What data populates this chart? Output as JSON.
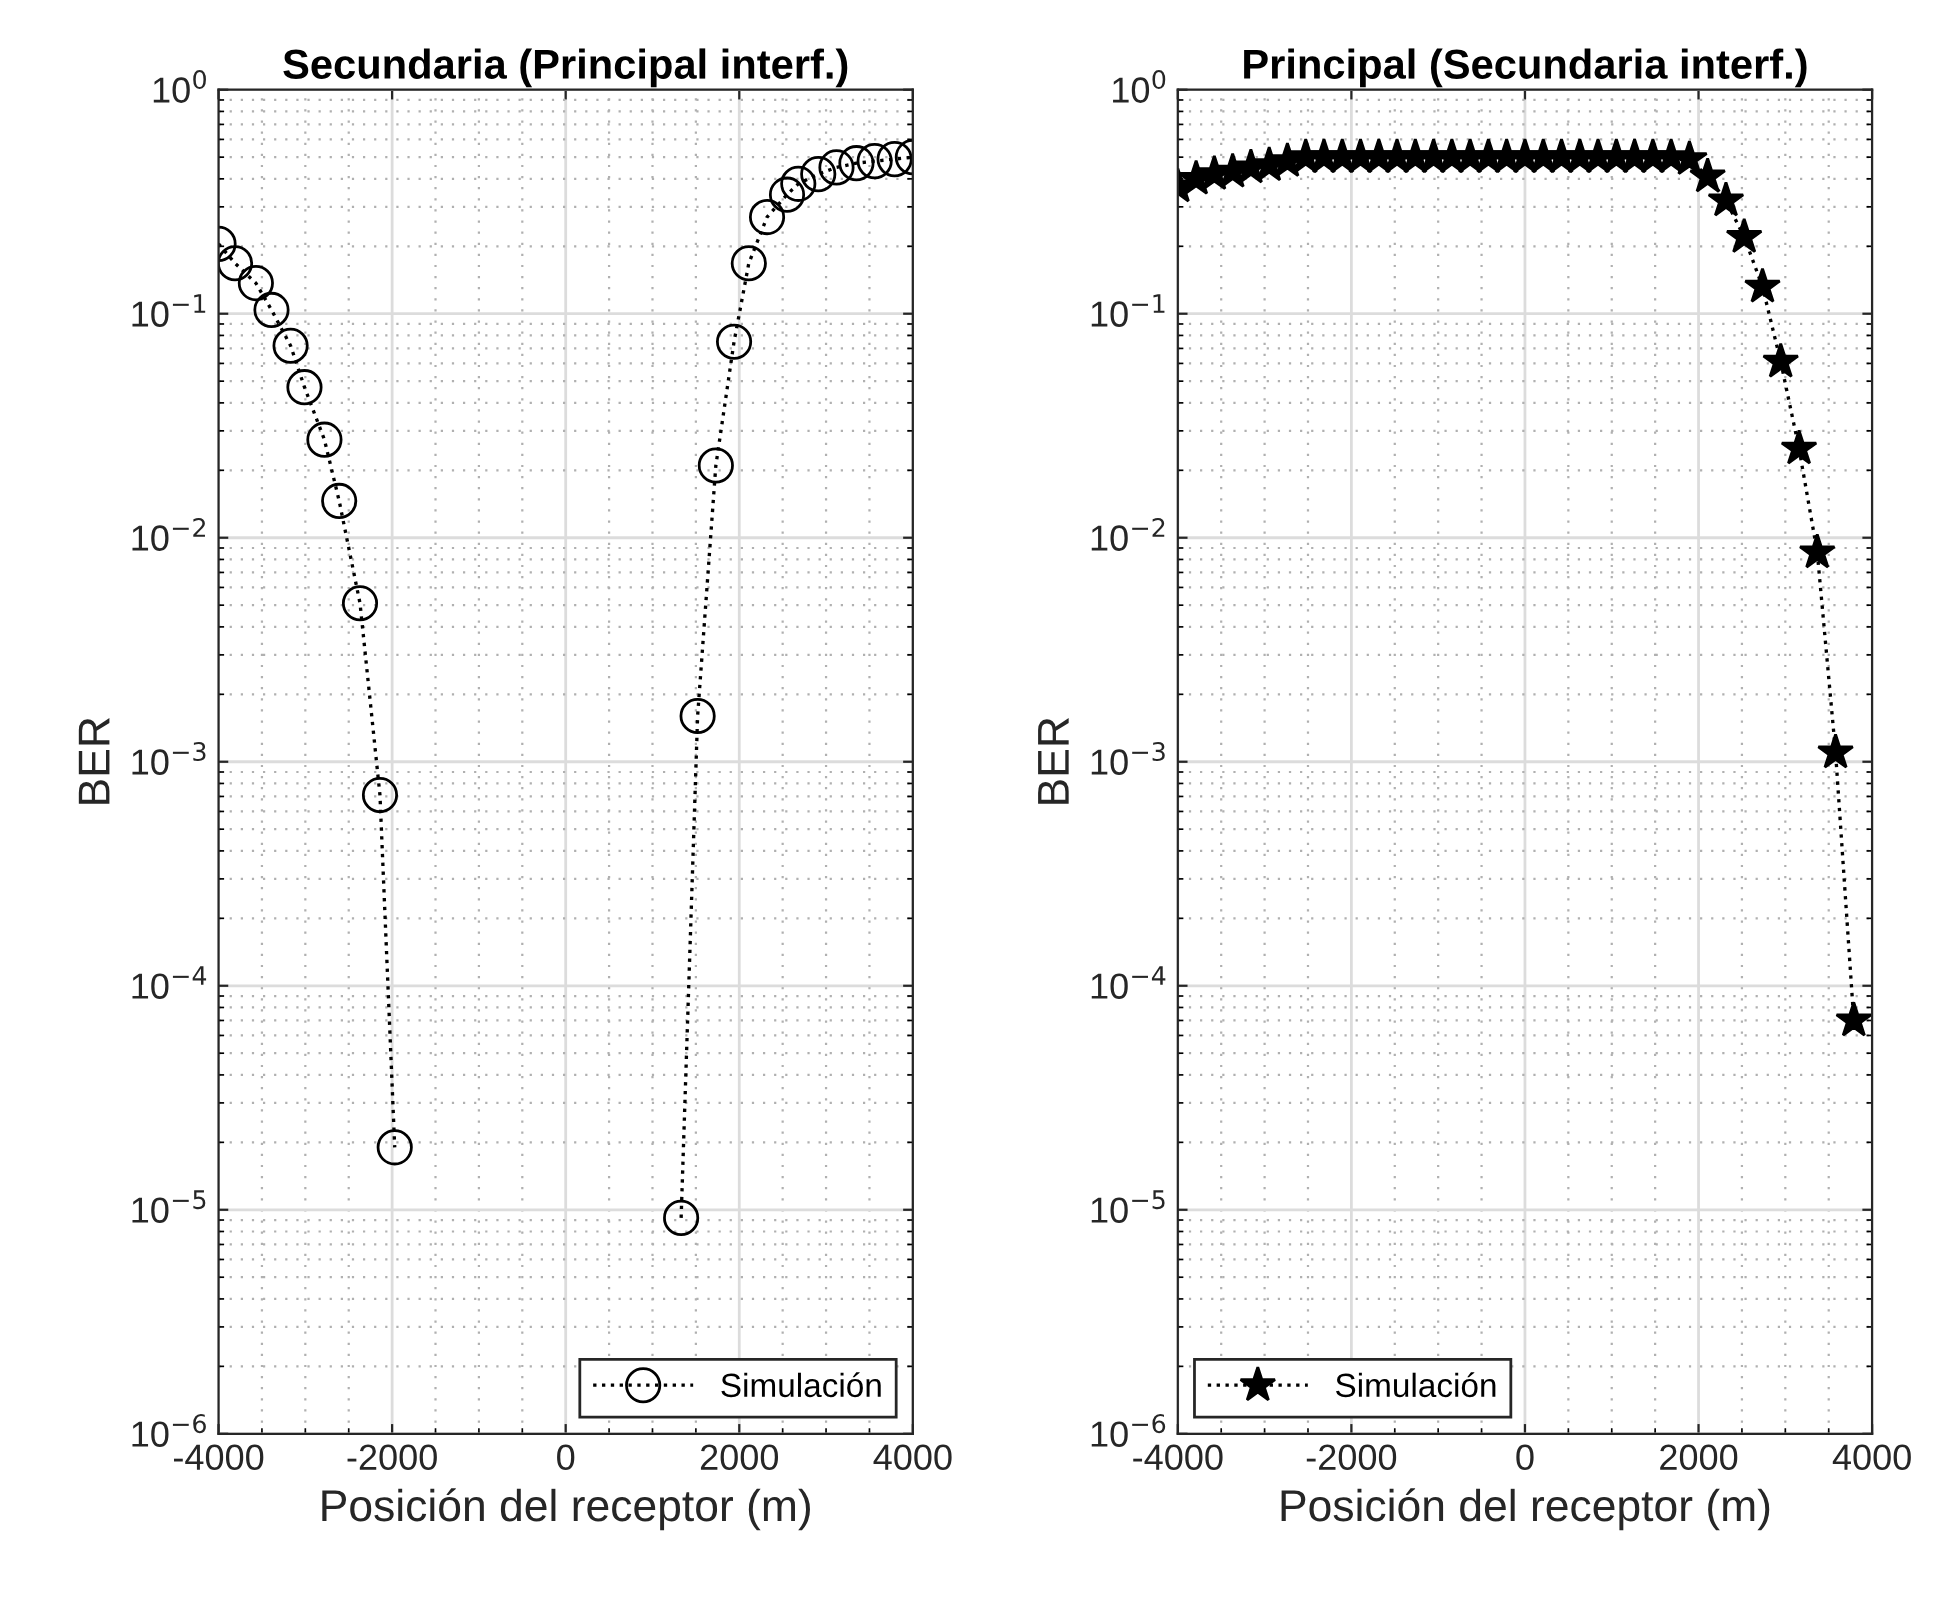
{
  "chart_data": [
    {
      "type": "line",
      "title": "Secundaria (Principal interf.)",
      "xlabel": "Posición del receptor (m)",
      "ylabel": "BER",
      "log": "y",
      "xlim": [
        -4000,
        4000
      ],
      "xticks": [
        -4000,
        -2000,
        0,
        2000,
        4000
      ],
      "ylim": [
        1e-06,
        1
      ],
      "yticks": [
        {
          "value": 1e-06,
          "label": "10$^{−6}$"
        },
        {
          "value": 1e-05,
          "label": "10$^{−5}$"
        },
        {
          "value": 0.0001,
          "label": "10$^{−4}$"
        },
        {
          "value": 0.001,
          "label": "10$^{−3}$"
        },
        {
          "value": 0.01,
          "label": "10$^{−2}$"
        },
        {
          "value": 0.1,
          "label": "10$^{−1}$"
        },
        {
          "value": 1,
          "label": "10$^{0}$"
        }
      ],
      "grid": true,
      "legend": "bottom right",
      "marker": "circle",
      "line_style": "dotted",
      "series": [
        {
          "name": "Simulación",
          "color": "#000000",
          "x": [
            -4000,
            -3810,
            -3570,
            -3390,
            -3170,
            -3010,
            -2780,
            -2610,
            -2370,
            -2140,
            -1970,
            0,
            1330,
            1520,
            1730,
            1940,
            2110,
            2320,
            2550,
            2680,
            2910,
            3120,
            3350,
            3560,
            3790,
            4000
          ],
          "values": [
            0.205,
            0.168,
            0.137,
            0.104,
            0.072,
            0.047,
            0.0274,
            0.0146,
            0.0051,
            0.00071,
            1.9e-05,
            null,
            9.2e-06,
            0.0016,
            0.021,
            0.075,
            0.168,
            0.27,
            0.34,
            0.38,
            0.42,
            0.45,
            0.47,
            0.48,
            0.49,
            0.5
          ]
        }
      ]
    },
    {
      "type": "line",
      "title": "Principal (Secundaria interf.)",
      "xlabel": "Posición del receptor (m)",
      "ylabel": "BER",
      "log": "y",
      "xlim": [
        -4000,
        4000
      ],
      "xticks": [
        -4000,
        -2000,
        0,
        2000,
        4000
      ],
      "ylim": [
        1e-06,
        1
      ],
      "yticks": [
        {
          "value": 1e-06,
          "label": "10$^{−6}$"
        },
        {
          "value": 1e-05,
          "label": "10$^{−5}$"
        },
        {
          "value": 0.0001,
          "label": "10$^{−4}$"
        },
        {
          "value": 0.001,
          "label": "10$^{−3}$"
        },
        {
          "value": 0.01,
          "label": "10$^{−2}$"
        },
        {
          "value": 0.1,
          "label": "10$^{−1}$"
        },
        {
          "value": 1,
          "label": "10$^{0}$"
        }
      ],
      "grid": true,
      "legend": "bottom left",
      "marker": "star",
      "line_style": "dotted",
      "series": [
        {
          "name": "Simulación",
          "color": "#000000",
          "x": [
            -4000,
            -3789,
            -3579,
            -3368,
            -3158,
            -2947,
            -2737,
            -2526,
            -2316,
            -2105,
            -1895,
            -1684,
            -1474,
            -1263,
            -1053,
            -842,
            -632,
            -421,
            -211,
            0,
            211,
            421,
            632,
            842,
            1053,
            1263,
            1474,
            1684,
            1895,
            2105,
            2316,
            2526,
            2737,
            2947,
            3158,
            3368,
            3579,
            3789
          ],
          "values": [
            0.37,
            0.4,
            0.42,
            0.43,
            0.45,
            0.46,
            0.48,
            0.5,
            0.5,
            0.5,
            0.5,
            0.5,
            0.5,
            0.5,
            0.5,
            0.5,
            0.5,
            0.5,
            0.5,
            0.5,
            0.5,
            0.5,
            0.5,
            0.5,
            0.5,
            0.5,
            0.5,
            0.5,
            0.49,
            0.41,
            0.32,
            0.22,
            0.132,
            0.061,
            0.025,
            0.0086,
            0.0011,
            7e-05
          ]
        }
      ]
    }
  ]
}
